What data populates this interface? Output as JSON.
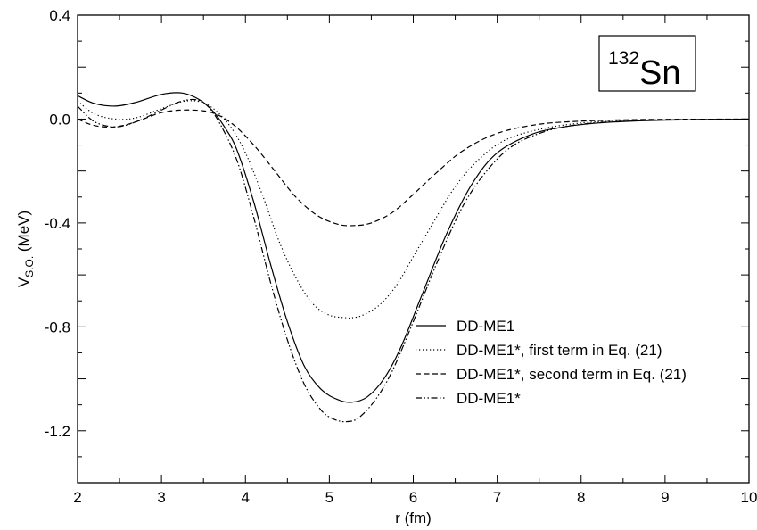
{
  "chart_data": {
    "type": "line",
    "xlabel": "r (fm)",
    "ylabel_main": "V",
    "ylabel_sub": "S.O.",
    "ylabel_unit": " (MeV)",
    "xlim": [
      2,
      10
    ],
    "ylim": [
      -1.4,
      0.4
    ],
    "xticks": [
      2,
      3,
      4,
      5,
      6,
      7,
      8,
      9,
      10
    ],
    "yticks": [
      "-1.2",
      "-0.8",
      "-0.4",
      "0.0",
      "0.4"
    ],
    "ytick_values": [
      -1.2,
      -0.8,
      -0.4,
      0.0,
      0.4
    ],
    "inset": {
      "mass_number": "132",
      "element": "Sn"
    },
    "legend_position": "bottom-right",
    "grid": false,
    "series": [
      {
        "name": "DD-ME1",
        "dash": "solid",
        "x": [
          2.0,
          2.2,
          2.45,
          2.7,
          3.0,
          3.25,
          3.45,
          3.6,
          3.75,
          3.9,
          4.1,
          4.3,
          4.5,
          4.7,
          4.9,
          5.1,
          5.27,
          5.45,
          5.65,
          5.85,
          6.1,
          6.4,
          6.7,
          7.0,
          7.4,
          7.8,
          8.2,
          8.6,
          9.0,
          9.5,
          10.0
        ],
        "y": [
          0.09,
          0.06,
          0.05,
          0.065,
          0.095,
          0.1,
          0.075,
          0.035,
          -0.03,
          -0.12,
          -0.32,
          -0.56,
          -0.78,
          -0.95,
          -1.04,
          -1.08,
          -1.09,
          -1.07,
          -1.0,
          -0.88,
          -0.68,
          -0.44,
          -0.25,
          -0.13,
          -0.06,
          -0.03,
          -0.015,
          -0.008,
          -0.004,
          -0.002,
          0.0
        ]
      },
      {
        "name": "DD-ME1*, first term in Eq. (21)",
        "dash": "dotted",
        "x": [
          2.0,
          2.2,
          2.45,
          2.7,
          3.0,
          3.3,
          3.55,
          3.8,
          4.0,
          4.2,
          4.4,
          4.6,
          4.8,
          5.0,
          5.2,
          5.27,
          5.4,
          5.6,
          5.8,
          6.0,
          6.2,
          6.5,
          6.8,
          7.1,
          7.5,
          8.0,
          8.5,
          9.0,
          10.0
        ],
        "y": [
          0.07,
          0.02,
          0.0,
          0.005,
          0.04,
          0.07,
          0.055,
          -0.02,
          -0.13,
          -0.29,
          -0.47,
          -0.61,
          -0.71,
          -0.755,
          -0.765,
          -0.765,
          -0.755,
          -0.715,
          -0.64,
          -0.53,
          -0.42,
          -0.26,
          -0.15,
          -0.08,
          -0.04,
          -0.015,
          -0.006,
          -0.002,
          0.0
        ]
      },
      {
        "name": "DD-ME1*, second term in Eq. (21)",
        "dash": "dashed",
        "x": [
          2.0,
          2.2,
          2.45,
          2.7,
          3.0,
          3.3,
          3.6,
          3.85,
          4.1,
          4.35,
          4.6,
          4.85,
          5.1,
          5.3,
          5.5,
          5.75,
          6.0,
          6.3,
          6.6,
          7.0,
          7.5,
          8.0,
          8.5,
          9.0,
          10.0
        ],
        "y": [
          0.0,
          -0.025,
          -0.03,
          -0.01,
          0.025,
          0.035,
          0.025,
          -0.02,
          -0.1,
          -0.2,
          -0.3,
          -0.37,
          -0.405,
          -0.41,
          -0.4,
          -0.36,
          -0.29,
          -0.2,
          -0.12,
          -0.055,
          -0.02,
          -0.008,
          -0.003,
          -0.001,
          0.0
        ]
      },
      {
        "name": "DD-ME1*",
        "dash": "dashdotdot",
        "x": [
          2.0,
          2.2,
          2.45,
          2.7,
          3.0,
          3.2,
          3.4,
          3.55,
          3.7,
          3.9,
          4.1,
          4.3,
          4.5,
          4.7,
          4.9,
          5.05,
          5.2,
          5.35,
          5.55,
          5.75,
          6.0,
          6.3,
          6.6,
          6.9,
          7.2,
          7.6,
          8.0,
          8.5,
          9.0,
          10.0
        ],
        "y": [
          0.05,
          -0.01,
          -0.03,
          -0.01,
          0.035,
          0.065,
          0.075,
          0.05,
          -0.02,
          -0.16,
          -0.38,
          -0.63,
          -0.85,
          -1.02,
          -1.12,
          -1.155,
          -1.165,
          -1.15,
          -1.08,
          -0.97,
          -0.78,
          -0.54,
          -0.33,
          -0.19,
          -0.1,
          -0.045,
          -0.02,
          -0.008,
          -0.003,
          0.0
        ]
      }
    ]
  }
}
